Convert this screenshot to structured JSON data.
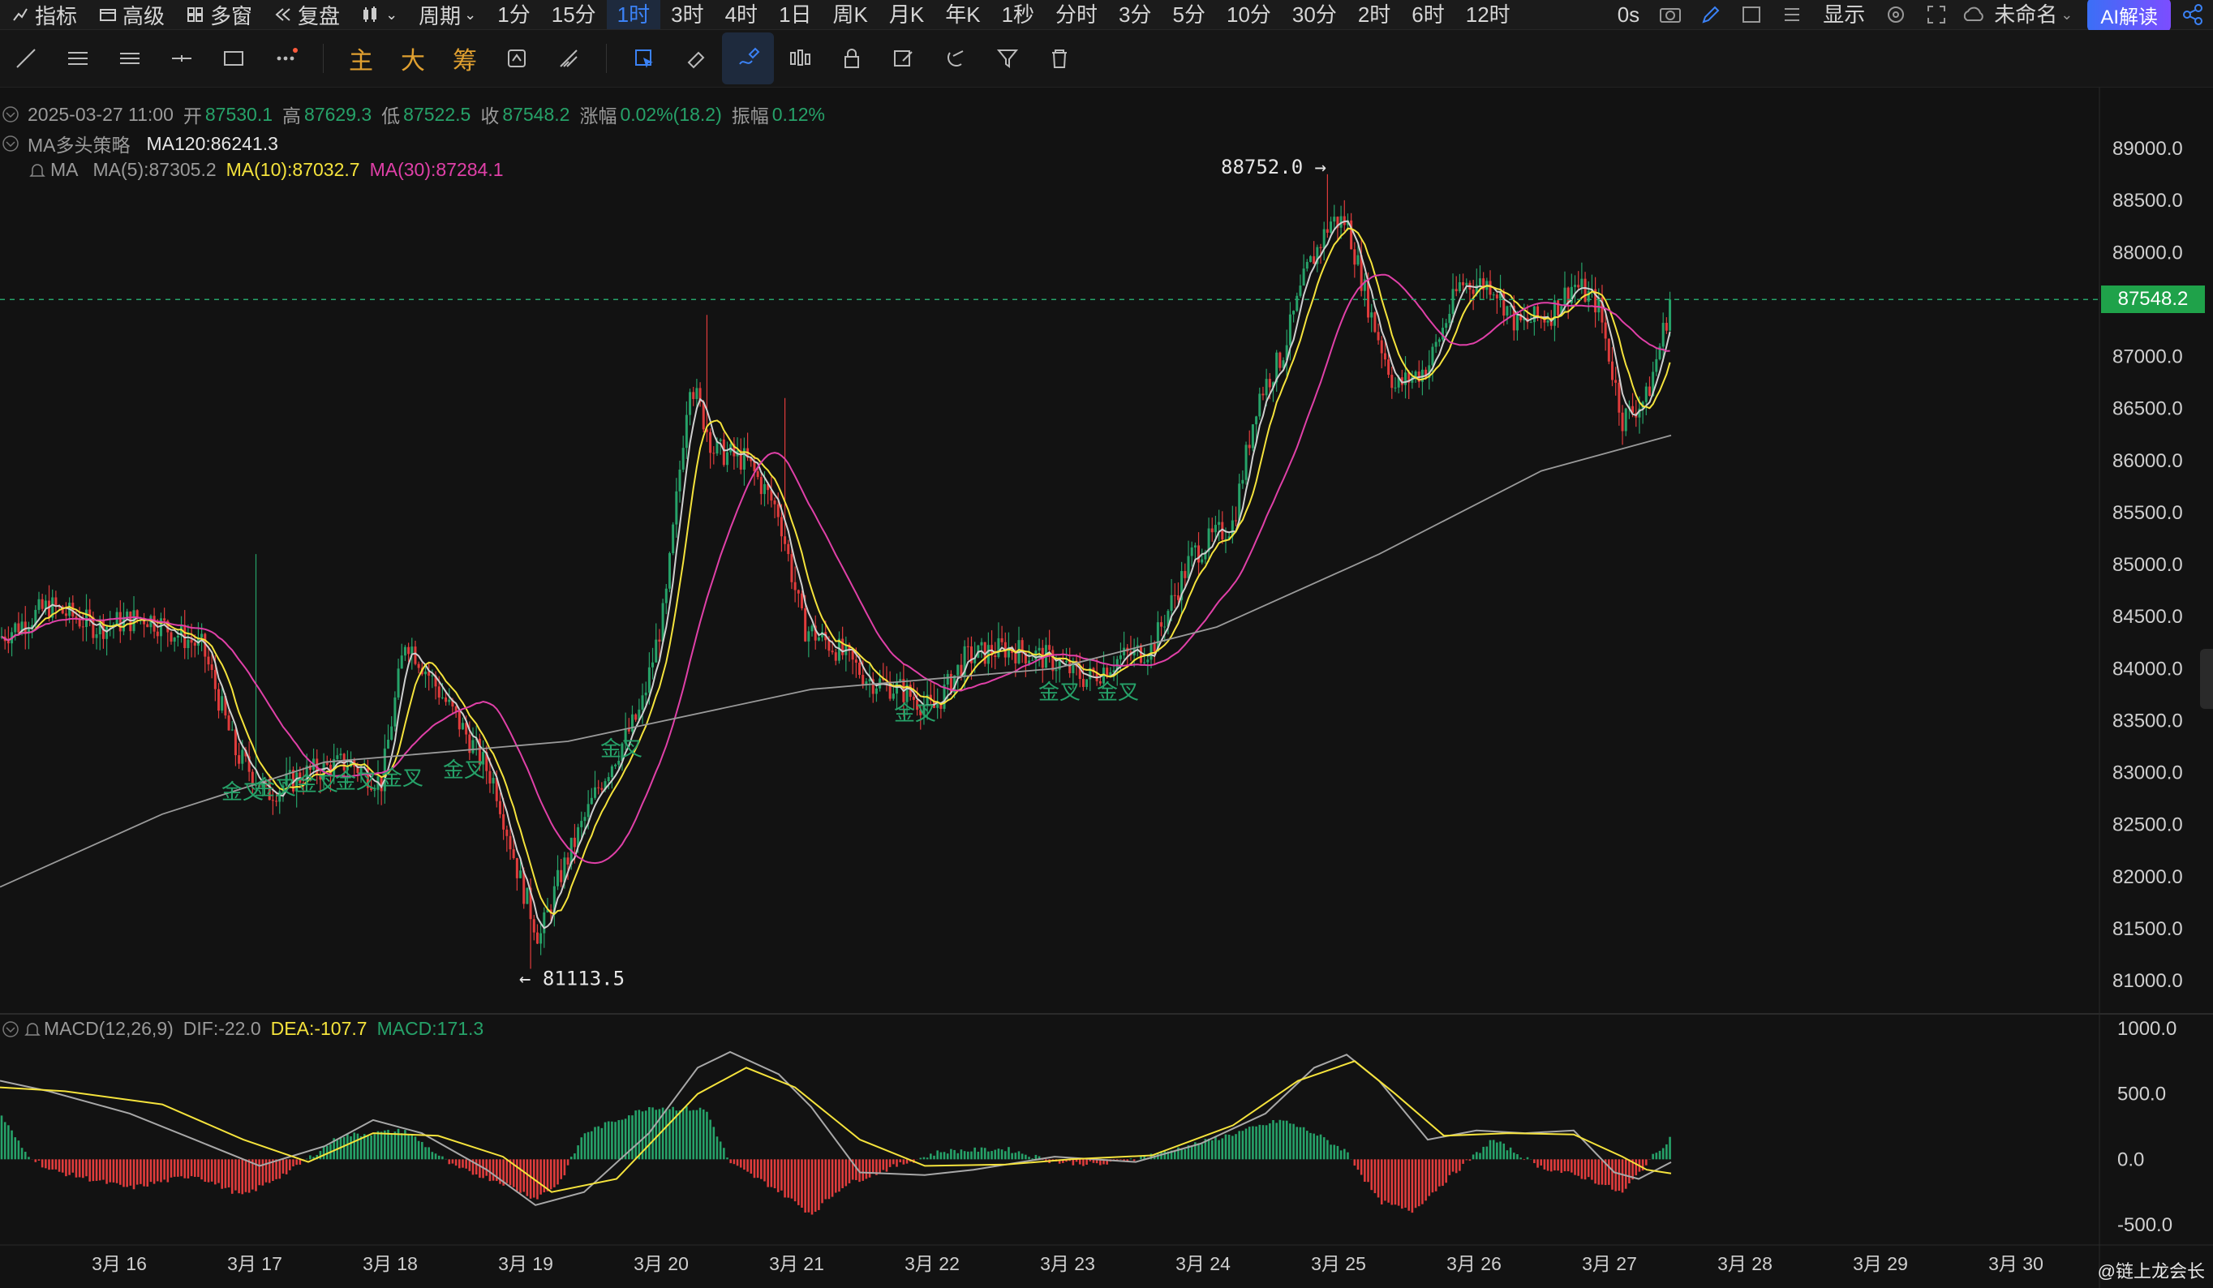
{
  "topbar": {
    "indicator": "指标",
    "advanced": "高级",
    "multi_window": "多窗",
    "replay": "复盘",
    "period_menu": "周期",
    "periods": [
      {
        "label": "1分",
        "active": false
      },
      {
        "label": "15分",
        "active": false
      },
      {
        "label": "1时",
        "active": true
      },
      {
        "label": "3时",
        "active": false
      },
      {
        "label": "4时",
        "active": false
      },
      {
        "label": "1日",
        "active": false
      },
      {
        "label": "周K",
        "active": false
      },
      {
        "label": "月K",
        "active": false
      },
      {
        "label": "年K",
        "active": false
      },
      {
        "label": "1秒",
        "active": false
      },
      {
        "label": "分时",
        "active": false
      },
      {
        "label": "3分",
        "active": false
      },
      {
        "label": "5分",
        "active": false
      },
      {
        "label": "10分",
        "active": false
      },
      {
        "label": "30分",
        "active": false
      },
      {
        "label": "2时",
        "active": false
      },
      {
        "label": "6时",
        "active": false
      },
      {
        "label": "12时",
        "active": false
      }
    ],
    "countdown": "0s",
    "display": "显示",
    "layout_name": "未命名",
    "ai_button": "AI解读"
  },
  "toolbar2": {
    "main": "主",
    "big": "大",
    "chips": "筹"
  },
  "info": {
    "datetime": "2025-03-27 11:00",
    "open_label": "开",
    "open": "87530.1",
    "high_label": "高",
    "high": "87629.3",
    "low_label": "低",
    "low": "87522.5",
    "close_label": "收",
    "close": "87548.2",
    "change_label": "涨幅",
    "change": "0.02%(18.2)",
    "amp_label": "振幅",
    "amp": "0.12%",
    "strategy_name": "MA多头策略",
    "ma120": "MA120:86241.3",
    "ma_name": "MA",
    "ma5": "MA(5):87305.2",
    "ma10": "MA(10):87032.7",
    "ma30": "MA(30):87284.1"
  },
  "macd_info": {
    "name": "MACD(12,26,9)",
    "dif": "DIF:-22.0",
    "dea": "DEA:-107.7",
    "macd": "MACD:171.3"
  },
  "annotations": {
    "high_marker": "88752.0",
    "low_marker": "81113.5",
    "golden_cross": "金叉"
  },
  "current_price": "87548.2",
  "watermark": "@链上龙会长",
  "colors": {
    "up": "#26a269",
    "down": "#e03c3c",
    "ma5": "#cfcfcf",
    "ma10": "#f5e33c",
    "ma30": "#e040a8",
    "ma120": "#9a9a9a",
    "accent": "#3b82f6",
    "price_tag": "#1fa24a"
  },
  "chart_data": [
    {
      "type": "candlestick",
      "timeframe": "1时",
      "x_ticks": [
        "3月 16",
        "3月 17",
        "3月 18",
        "3月 19",
        "3月 20",
        "3月 21",
        "3月 22",
        "3月 23",
        "3月 24",
        "3月 25",
        "3月 26",
        "3月 27",
        "3月 28",
        "3月 29",
        "3月 30"
      ],
      "y_ticks": [
        "89000.0",
        "88500.0",
        "88000.0",
        "87500.0",
        "87000.0",
        "86500.0",
        "86000.0",
        "85500.0",
        "85000.0",
        "84500.0",
        "84000.0",
        "83500.0",
        "83000.0",
        "82500.0",
        "82000.0",
        "81500.0",
        "81000.0"
      ],
      "ylim": [
        80650,
        89450
      ],
      "ma_series_names": [
        "MA(5)",
        "MA(10)",
        "MA(30)",
        "MA120"
      ],
      "high": 88752.0,
      "low": 81113.5,
      "last": 87548.2
    },
    {
      "type": "bar",
      "name": "MACD(12,26,9)",
      "y_ticks": [
        "1000.0",
        "500.0",
        "0.0",
        "-500.0"
      ],
      "ylim": [
        -700,
        1150
      ],
      "series_names": [
        "DIF",
        "DEA",
        "MACD"
      ]
    }
  ]
}
